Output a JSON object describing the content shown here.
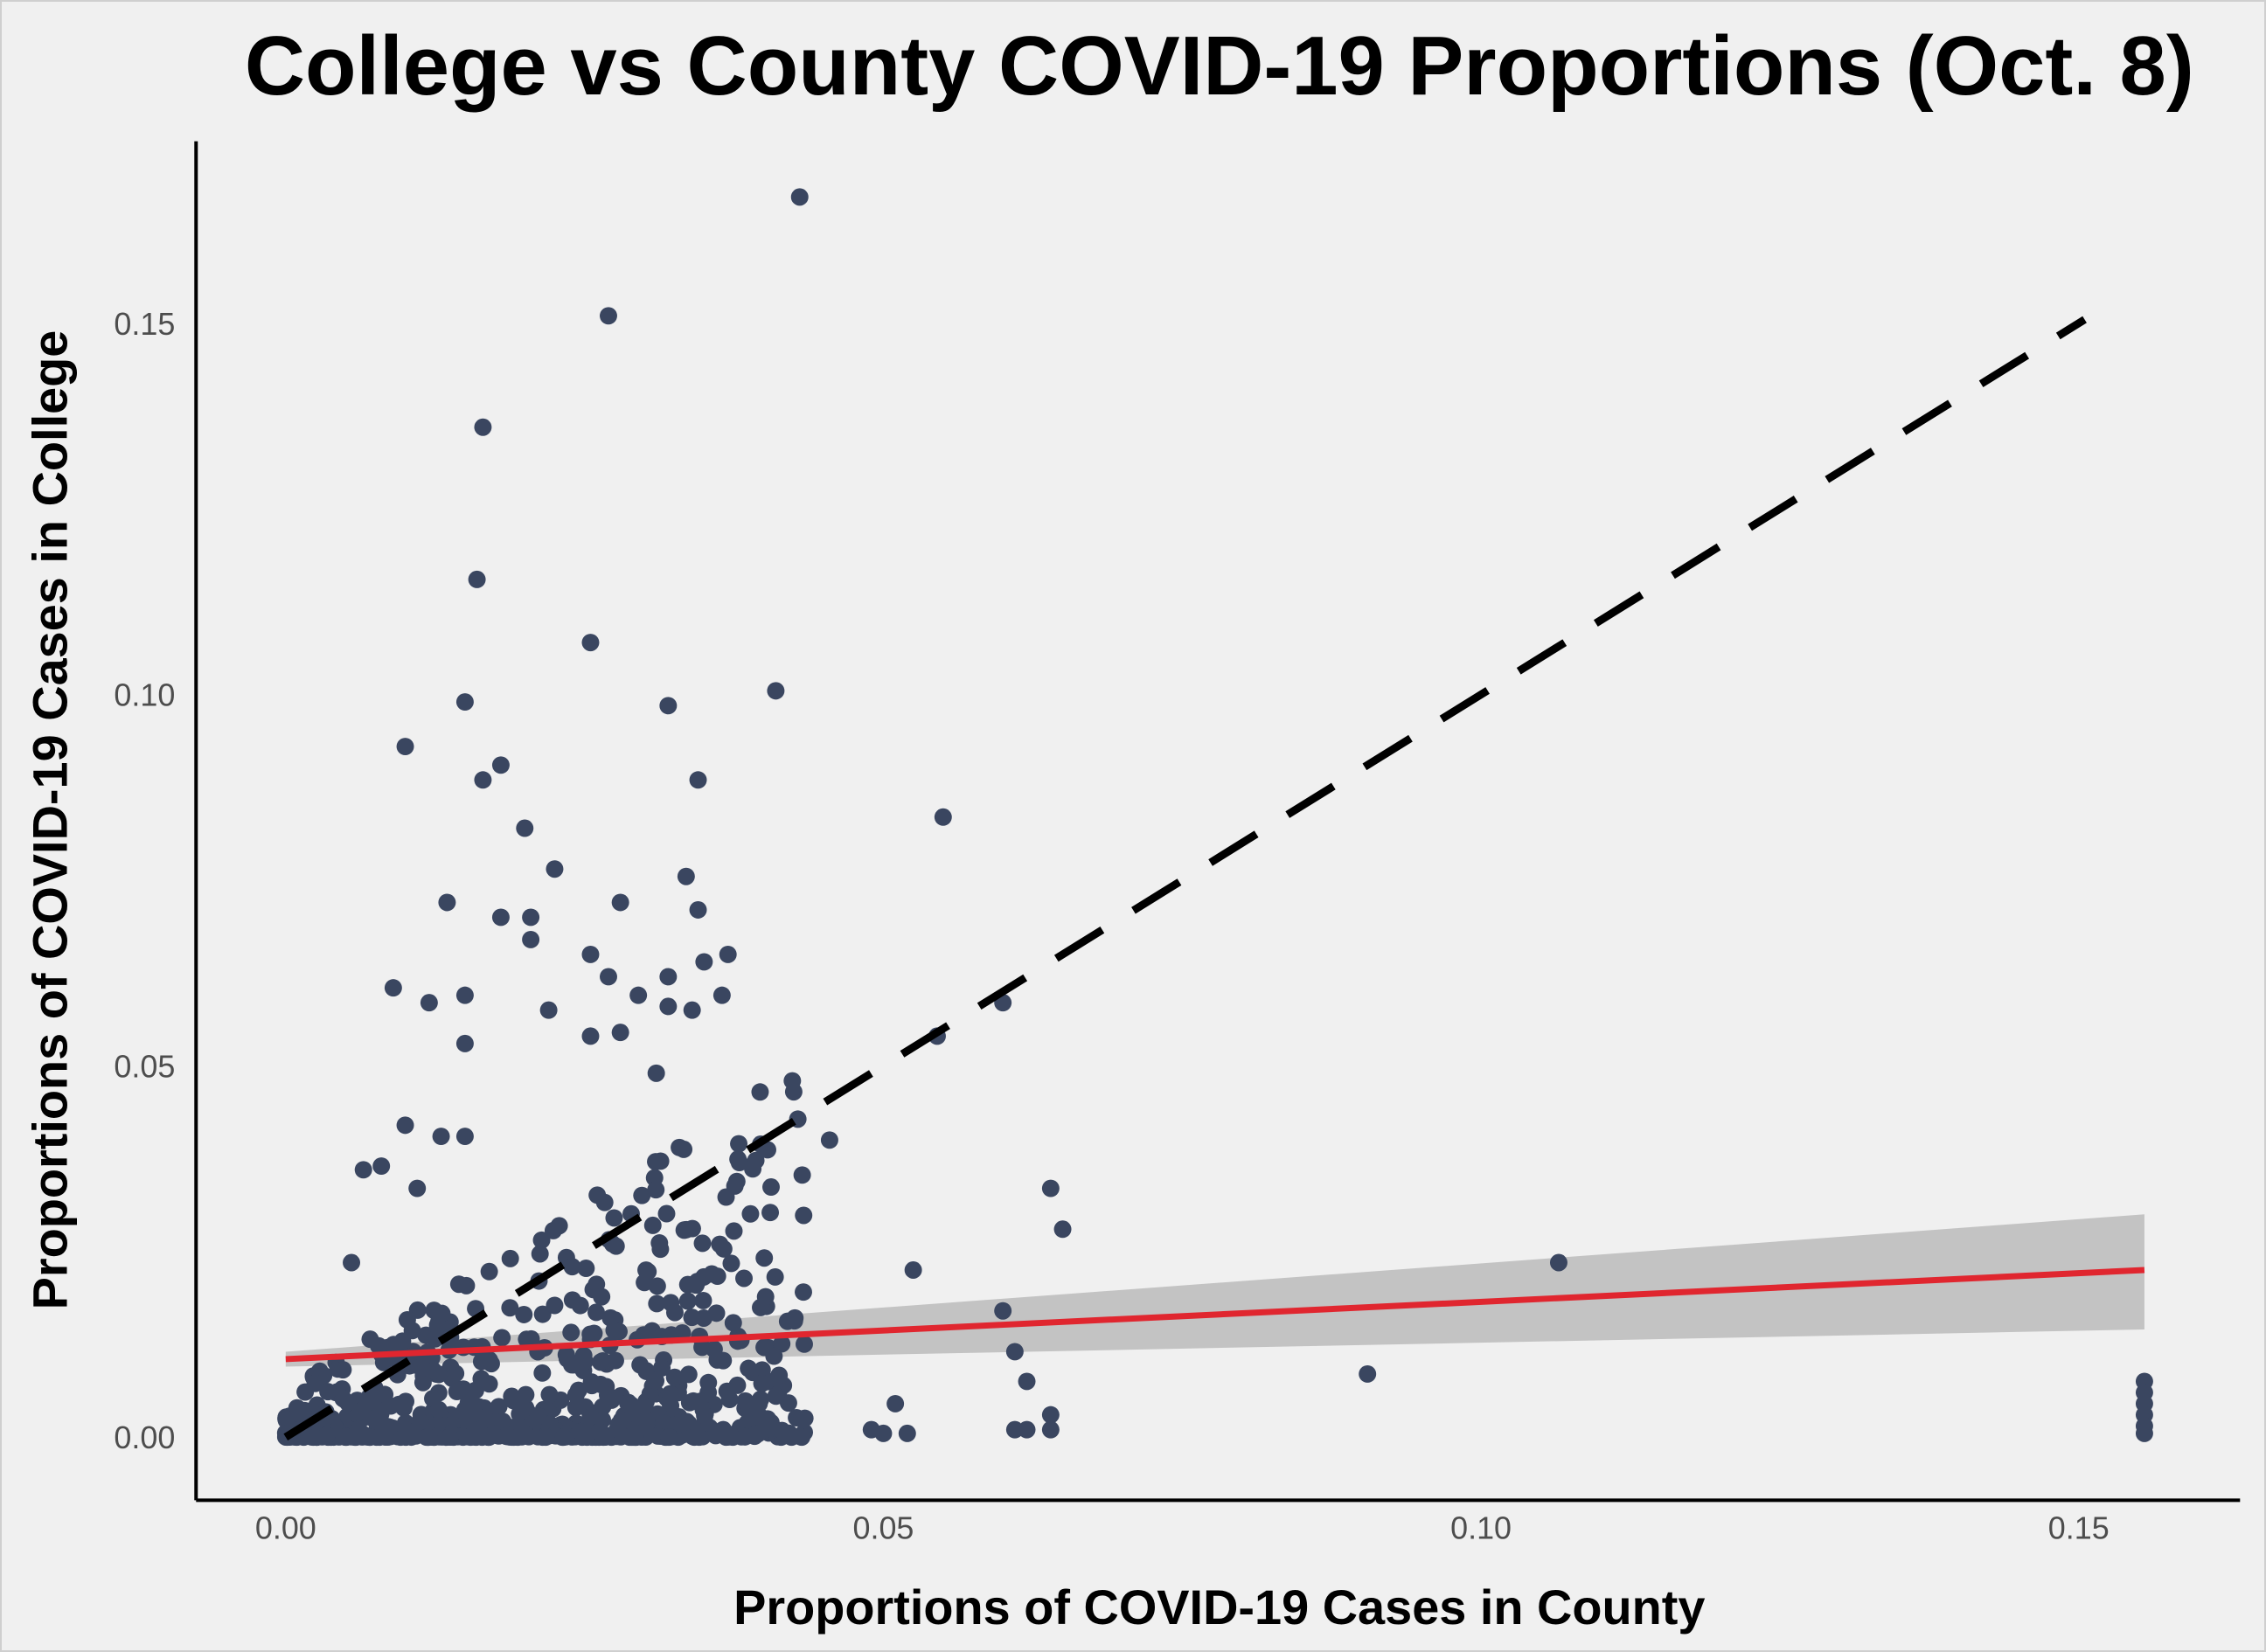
{
  "chart_data": {
    "type": "scatter",
    "title": "College vs County COVID-19 Proportions (Oct. 8)",
    "xlabel": "Proportions of COVID-19 Cases in County",
    "ylabel": "Proportions of COVID-19 Cases in College",
    "xlim": [
      -0.0075,
      0.1635
    ],
    "ylim": [
      -0.0085,
      0.1745
    ],
    "xticks": [
      0.0,
      0.05,
      0.1,
      0.15
    ],
    "xtick_labels": [
      "0.00",
      "0.05",
      "0.10",
      "0.15"
    ],
    "yticks": [
      0.0,
      0.05,
      0.1,
      0.15
    ],
    "ytick_labels": [
      "0.00",
      "0.05",
      "0.10",
      "0.15"
    ],
    "grid": false,
    "legend": "none",
    "colors": {
      "points": "#3a4660",
      "fit_line": "#e0262f",
      "confidence_band": "#c3c3c3",
      "reference_line": "#000000",
      "background": "#f0f0f0"
    },
    "reference_line": {
      "style": "dashed",
      "x": [
        0.0,
        0.1505
      ],
      "y": [
        0.0,
        0.1505
      ]
    },
    "fit_line": {
      "x": [
        0.0,
        0.1555
      ],
      "y": [
        0.0105,
        0.0225
      ]
    },
    "confidence_band": {
      "x": [
        0.0,
        0.1555
      ],
      "lower": [
        0.0095,
        0.0145
      ],
      "upper": [
        0.0115,
        0.03
      ]
    },
    "outlier_points": [
      {
        "x": 0.043,
        "y": 0.167
      },
      {
        "x": 0.027,
        "y": 0.151
      },
      {
        "x": 0.0165,
        "y": 0.136
      },
      {
        "x": 0.016,
        "y": 0.1155
      },
      {
        "x": 0.0255,
        "y": 0.107
      },
      {
        "x": 0.041,
        "y": 0.1005
      },
      {
        "x": 0.015,
        "y": 0.099
      },
      {
        "x": 0.032,
        "y": 0.0985
      },
      {
        "x": 0.01,
        "y": 0.093
      },
      {
        "x": 0.018,
        "y": 0.0905
      },
      {
        "x": 0.0345,
        "y": 0.0885
      },
      {
        "x": 0.0165,
        "y": 0.0885
      },
      {
        "x": 0.055,
        "y": 0.0835
      },
      {
        "x": 0.02,
        "y": 0.082
      },
      {
        "x": 0.0225,
        "y": 0.0765
      },
      {
        "x": 0.0335,
        "y": 0.0755
      },
      {
        "x": 0.0135,
        "y": 0.072
      },
      {
        "x": 0.028,
        "y": 0.072
      },
      {
        "x": 0.0345,
        "y": 0.071
      },
      {
        "x": 0.018,
        "y": 0.07
      },
      {
        "x": 0.0205,
        "y": 0.07
      },
      {
        "x": 0.0205,
        "y": 0.067
      },
      {
        "x": 0.035,
        "y": 0.064
      },
      {
        "x": 0.037,
        "y": 0.065
      },
      {
        "x": 0.0255,
        "y": 0.065
      },
      {
        "x": 0.027,
        "y": 0.062
      },
      {
        "x": 0.032,
        "y": 0.062
      },
      {
        "x": 0.009,
        "y": 0.0605
      },
      {
        "x": 0.015,
        "y": 0.0595
      },
      {
        "x": 0.012,
        "y": 0.0585
      },
      {
        "x": 0.0295,
        "y": 0.0595
      },
      {
        "x": 0.0365,
        "y": 0.0595
      },
      {
        "x": 0.06,
        "y": 0.0585
      },
      {
        "x": 0.032,
        "y": 0.058
      },
      {
        "x": 0.022,
        "y": 0.0575
      },
      {
        "x": 0.034,
        "y": 0.0575
      },
      {
        "x": 0.0545,
        "y": 0.054
      },
      {
        "x": 0.015,
        "y": 0.053
      },
      {
        "x": 0.028,
        "y": 0.0545
      },
      {
        "x": 0.0255,
        "y": 0.054
      },
      {
        "x": 0.031,
        "y": 0.049
      },
      {
        "x": 0.0425,
        "y": 0.0465
      },
      {
        "x": 0.0455,
        "y": 0.04
      },
      {
        "x": 0.064,
        "y": 0.0335
      },
      {
        "x": 0.065,
        "y": 0.028
      },
      {
        "x": 0.01,
        "y": 0.042
      },
      {
        "x": 0.013,
        "y": 0.0405
      },
      {
        "x": 0.015,
        "y": 0.0405
      },
      {
        "x": 0.0065,
        "y": 0.036
      },
      {
        "x": 0.008,
        "y": 0.0365
      },
      {
        "x": 0.011,
        "y": 0.0335
      },
      {
        "x": 0.0055,
        "y": 0.0235
      },
      {
        "x": 0.0525,
        "y": 0.0225
      },
      {
        "x": 0.06,
        "y": 0.017
      },
      {
        "x": 0.061,
        "y": 0.0115
      },
      {
        "x": 0.062,
        "y": 0.0075
      },
      {
        "x": 0.0905,
        "y": 0.0085
      },
      {
        "x": 0.1065,
        "y": 0.0235
      },
      {
        "x": 0.049,
        "y": 0.001
      },
      {
        "x": 0.05,
        "y": 0.0005
      },
      {
        "x": 0.052,
        "y": 0.0005
      },
      {
        "x": 0.051,
        "y": 0.0045
      },
      {
        "x": 0.061,
        "y": 0.001
      },
      {
        "x": 0.062,
        "y": 0.001
      },
      {
        "x": 0.064,
        "y": 0.001
      },
      {
        "x": 0.064,
        "y": 0.003
      },
      {
        "x": 0.1555,
        "y": 0.0075
      },
      {
        "x": 0.1555,
        "y": 0.006
      },
      {
        "x": 0.1555,
        "y": 0.0045
      },
      {
        "x": 0.1555,
        "y": 0.003
      },
      {
        "x": 0.1555,
        "y": 0.0015
      },
      {
        "x": 0.1555,
        "y": 0.0005
      }
    ],
    "dense_cluster": {
      "count": 700,
      "x_range": [
        0.0,
        0.0435
      ],
      "y_range": [
        0.0,
        0.048
      ],
      "seed": 7
    }
  }
}
